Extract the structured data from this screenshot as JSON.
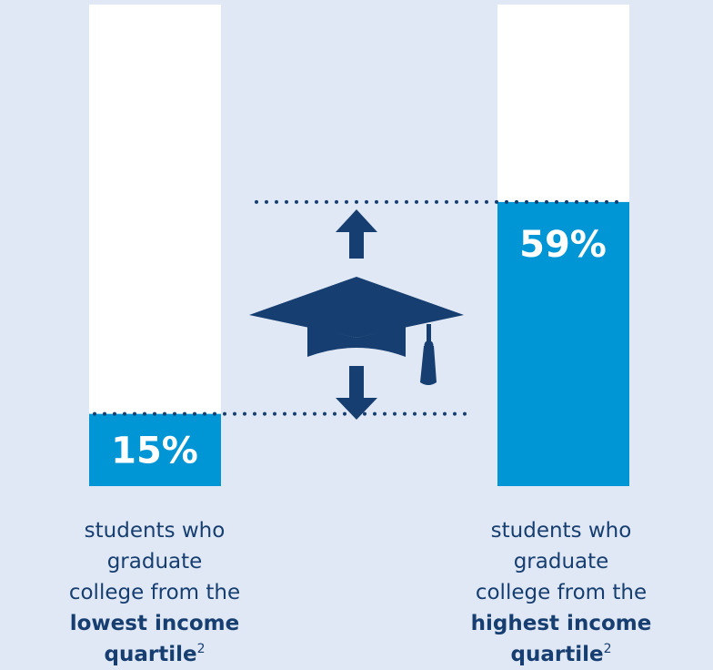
{
  "chart_data": {
    "type": "bar",
    "ylim": [
      0,
      100
    ],
    "bars": [
      {
        "value": 15,
        "value_label": "15%",
        "caption_line1": "students who graduate",
        "caption_line2": "college from the",
        "caption_bold1": "lowest income",
        "caption_bold2": "quartile",
        "footnote": "2"
      },
      {
        "value": 59,
        "value_label": "59%",
        "caption_line1": "students who graduate",
        "caption_line2": "college from the",
        "caption_bold1": "highest income",
        "caption_bold2": "quartile",
        "footnote": "2"
      }
    ]
  },
  "colors": {
    "background": "#e0e8f5",
    "bar_empty": "#ffffff",
    "bar_fill": "#0096d6",
    "navy": "#163e70"
  },
  "icons": [
    "graduation-cap-icon",
    "arrow-up-icon",
    "arrow-down-icon"
  ]
}
